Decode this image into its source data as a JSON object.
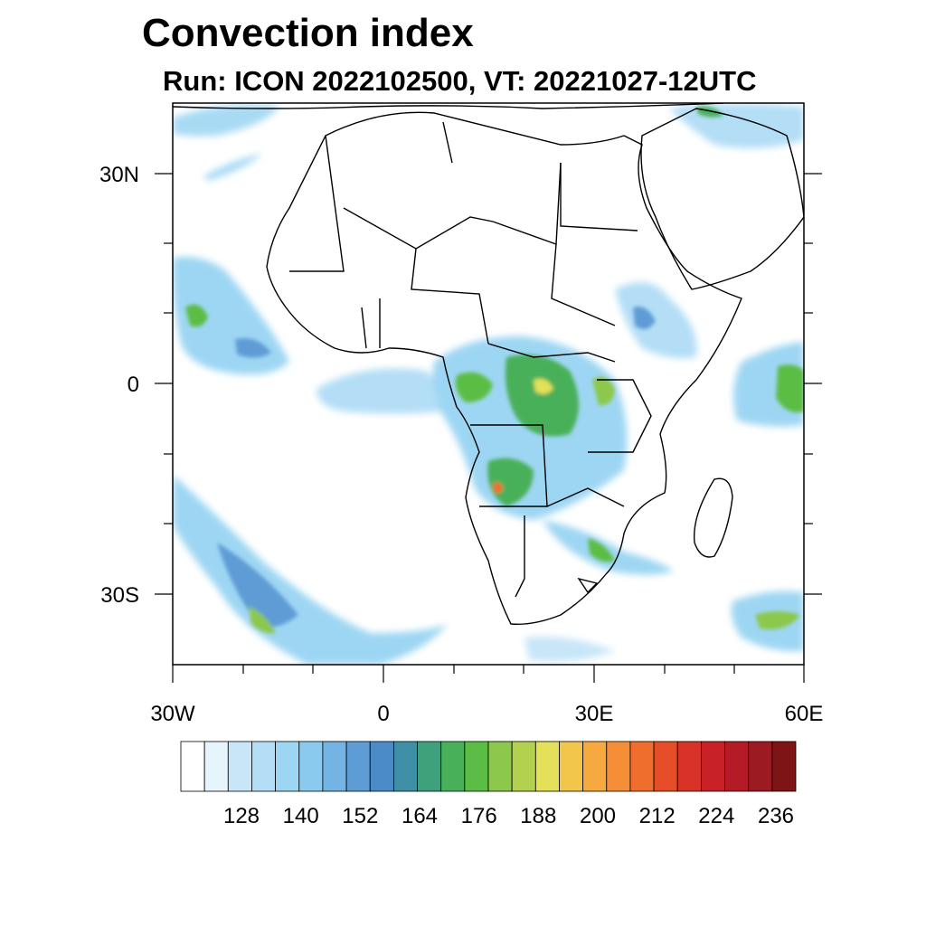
{
  "title": "Convection index",
  "subtitle": "Run: ICON 2022102500,  VT: 20221027-12UTC",
  "map": {
    "lon_range": [
      -30,
      60
    ],
    "lat_range": [
      -40,
      40
    ],
    "lat_ticks": [
      "30N",
      "0",
      "30S"
    ],
    "lon_ticks": [
      "30W",
      "0",
      "30E",
      "60E"
    ]
  },
  "colorbar": {
    "labels": [
      "128",
      "140",
      "152",
      "164",
      "176",
      "188",
      "200",
      "212",
      "224",
      "236"
    ],
    "colors": [
      "#ffffff",
      "#e6f4fc",
      "#c8e6f8",
      "#b4def6",
      "#9dd6f3",
      "#8acaef",
      "#74b4e4",
      "#5e9cd6",
      "#4b8bc7",
      "#3f8fa6",
      "#3fa07c",
      "#49b05a",
      "#5bbd45",
      "#8cc84c",
      "#b2d24f",
      "#e4e059",
      "#f2c54b",
      "#f5a93e",
      "#f48f37",
      "#ef6e2d",
      "#e54e29",
      "#d93329",
      "#c82128",
      "#b31b26",
      "#9c1a22",
      "#7f1416"
    ]
  }
}
